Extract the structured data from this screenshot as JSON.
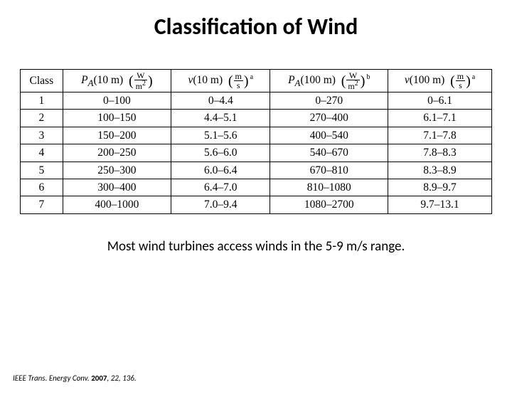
{
  "title": "Classification of Wind",
  "table": {
    "columns": {
      "class_label": "Class",
      "pa10_var": "P",
      "pa10_sub": "A",
      "pa10_arg": "(10 m)",
      "v10_var": "v",
      "v10_arg": "(10 m)",
      "pa100_var": "P",
      "pa100_sub": "A",
      "pa100_arg": "(100 m)",
      "v100_var": "v",
      "v100_arg": "(100 m)",
      "W": "W",
      "m2": "m",
      "m2exp": "2",
      "m": "m",
      "s": "s",
      "note_a": "a",
      "note_b": "b"
    },
    "rows": [
      {
        "c": "1",
        "pa10": "0–100",
        "v10": "0–4.4",
        "pa100": "0–270",
        "v100": "0–6.1"
      },
      {
        "c": "2",
        "pa10": "100–150",
        "v10": "4.4–5.1",
        "pa100": "270–400",
        "v100": "6.1–7.1"
      },
      {
        "c": "3",
        "pa10": "150–200",
        "v10": "5.1–5.6",
        "pa100": "400–540",
        "v100": "7.1–7.8"
      },
      {
        "c": "4",
        "pa10": "200–250",
        "v10": "5.6–6.0",
        "pa100": "540–670",
        "v100": "7.8–8.3"
      },
      {
        "c": "5",
        "pa10": "250–300",
        "v10": "6.0–6.4",
        "pa100": "670–810",
        "v100": "8.3–8.9"
      },
      {
        "c": "6",
        "pa10": "300–400",
        "v10": "6.4–7.0",
        "pa100": "810–1080",
        "v100": "8.9–9.7"
      },
      {
        "c": "7",
        "pa10": "400–1000",
        "v10": "7.0–9.4",
        "pa100": "1080–2700",
        "v100": "9.7–13.1"
      }
    ]
  },
  "caption": "Most wind turbines access winds in the 5-9 m/s range.",
  "citation": {
    "journal": "IEEE Trans. Energy Conv.",
    "year": "2007",
    "rest": ", 22, 136."
  }
}
